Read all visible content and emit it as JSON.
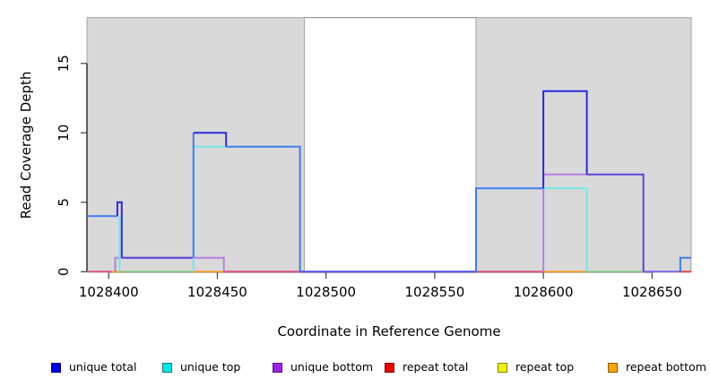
{
  "figure": {
    "xlabel": "Coordinate in Reference Genome",
    "ylabel": "Read Coverage Depth"
  },
  "chart_data": {
    "type": "line",
    "subtype": "step-coverage-plot",
    "title": "",
    "xlabel": "Coordinate in Reference Genome",
    "ylabel": "Read Coverage Depth",
    "xlim": [
      1028390,
      1028668
    ],
    "ylim": [
      0,
      18.3
    ],
    "x_ticks": [
      1028400,
      1028450,
      1028500,
      1028550,
      1028600,
      1028650
    ],
    "y_ticks": [
      0,
      5,
      10,
      15
    ],
    "grid": false,
    "legend_position": "bottom",
    "repeat_regions": [
      [
        1028390,
        1028490
      ],
      [
        1028569,
        1028668
      ]
    ],
    "legend": [
      {
        "label": "unique total",
        "color": "#0000ee"
      },
      {
        "label": "unique top",
        "color": "#00e6e6"
      },
      {
        "label": "unique bottom",
        "color": "#a020f0"
      },
      {
        "label": "repeat total",
        "color": "#ee0000"
      },
      {
        "label": "repeat top",
        "color": "#f2f200"
      },
      {
        "label": "repeat bottom",
        "color": "#ffa500"
      }
    ],
    "series": [
      {
        "name": "unique total",
        "steps": [
          [
            1028390,
            4
          ],
          [
            1028404,
            5
          ],
          [
            1028406,
            1
          ],
          [
            1028439,
            10
          ],
          [
            1028454,
            9
          ],
          [
            1028488,
            0
          ],
          [
            1028569,
            6
          ],
          [
            1028600,
            13
          ],
          [
            1028620,
            7
          ],
          [
            1028646,
            0
          ],
          [
            1028663,
            1
          ],
          [
            1028668,
            1
          ]
        ]
      },
      {
        "name": "unique top",
        "steps": [
          [
            1028390,
            4
          ],
          [
            1028406,
            0
          ],
          [
            1028439,
            9
          ],
          [
            1028488,
            0
          ],
          [
            1028569,
            6
          ],
          [
            1028620,
            0
          ],
          [
            1028668,
            0
          ]
        ]
      },
      {
        "name": "unique bottom",
        "steps": [
          [
            1028390,
            0
          ],
          [
            1028403,
            1
          ],
          [
            1028453,
            0
          ],
          [
            1028600,
            7
          ],
          [
            1028646,
            0
          ],
          [
            1028668,
            0
          ]
        ]
      },
      {
        "name": "repeat total",
        "steps": [
          [
            1028390,
            0
          ],
          [
            1028668,
            0
          ]
        ]
      },
      {
        "name": "repeat top",
        "steps": [
          [
            1028390,
            0
          ],
          [
            1028668,
            0
          ]
        ]
      },
      {
        "name": "repeat bottom",
        "steps": [
          [
            1028390,
            0
          ],
          [
            1028668,
            0
          ]
        ]
      }
    ],
    "palette": {
      "deep": "#2a2ae0",
      "azure": "#3f7df0",
      "indigo": "#5b45d8",
      "violet": "#b77ee0",
      "cyan": "#72e8e8",
      "green": "#8cc98c",
      "orange": "#f59b2a",
      "rose": "#d8547e",
      "navy": "#4d4de8",
      "slate": "#7a62e8",
      "red": "#e04545",
      "region_fill": "#d9d9d9",
      "region_border": "#a3a3a3",
      "top_line": "#999999",
      "axis": "#000000",
      "tick": "#404040"
    },
    "zero_segments": [
      [
        1028390,
        1028401,
        "rose"
      ],
      [
        1028401,
        1028406,
        "orange"
      ],
      [
        1028406,
        1028439,
        "green"
      ],
      [
        1028439,
        1028453,
        "orange"
      ],
      [
        1028453,
        1028488,
        "rose"
      ],
      [
        1028488,
        1028569,
        "navy"
      ],
      [
        1028569,
        1028600,
        "rose"
      ],
      [
        1028600,
        1028620,
        "orange"
      ],
      [
        1028620,
        1028646,
        "green"
      ],
      [
        1028646,
        1028663,
        "slate"
      ],
      [
        1028663,
        1028668,
        "red"
      ]
    ],
    "render_lines": [
      {
        "color": "violet",
        "points": [
          [
            1028403,
            0
          ],
          [
            1028403,
            1
          ],
          [
            1028453,
            1
          ],
          [
            1028453,
            0
          ]
        ]
      },
      {
        "color": "cyan",
        "points": [
          [
            1028405,
            4
          ],
          [
            1028405,
            0
          ]
        ]
      },
      {
        "color": "azure",
        "points": [
          [
            1028390,
            4
          ],
          [
            1028404,
            4
          ]
        ]
      },
      {
        "color": "deep",
        "points": [
          [
            1028404,
            4
          ],
          [
            1028404,
            5
          ],
          [
            1028406,
            5
          ],
          [
            1028406,
            1
          ]
        ]
      },
      {
        "color": "indigo",
        "points": [
          [
            1028406,
            1
          ],
          [
            1028439,
            1
          ]
        ]
      },
      {
        "color": "cyan",
        "points": [
          [
            1028439,
            0
          ],
          [
            1028439,
            9
          ],
          [
            1028454,
            9
          ]
        ]
      },
      {
        "color": "azure",
        "points": [
          [
            1028439,
            1
          ],
          [
            1028439,
            10
          ]
        ]
      },
      {
        "color": "deep",
        "points": [
          [
            1028439,
            10
          ],
          [
            1028454,
            10
          ],
          [
            1028454,
            9
          ]
        ]
      },
      {
        "color": "azure",
        "points": [
          [
            1028454,
            9
          ],
          [
            1028488,
            9
          ],
          [
            1028488,
            0
          ]
        ]
      },
      {
        "color": "azure",
        "points": [
          [
            1028569,
            0
          ],
          [
            1028569,
            6
          ],
          [
            1028600,
            6
          ]
        ]
      },
      {
        "color": "violet",
        "points": [
          [
            1028600,
            0
          ],
          [
            1028600,
            7
          ],
          [
            1028620,
            7
          ]
        ]
      },
      {
        "color": "cyan",
        "points": [
          [
            1028600,
            6
          ],
          [
            1028620,
            6
          ],
          [
            1028620,
            0
          ]
        ]
      },
      {
        "color": "deep",
        "points": [
          [
            1028600,
            6
          ],
          [
            1028600,
            13
          ],
          [
            1028620,
            13
          ],
          [
            1028620,
            7
          ]
        ]
      },
      {
        "color": "indigo",
        "points": [
          [
            1028620,
            7
          ],
          [
            1028646,
            7
          ],
          [
            1028646,
            0
          ]
        ]
      },
      {
        "color": "azure",
        "points": [
          [
            1028663,
            0
          ],
          [
            1028663,
            1
          ],
          [
            1028668,
            1
          ]
        ]
      }
    ]
  }
}
